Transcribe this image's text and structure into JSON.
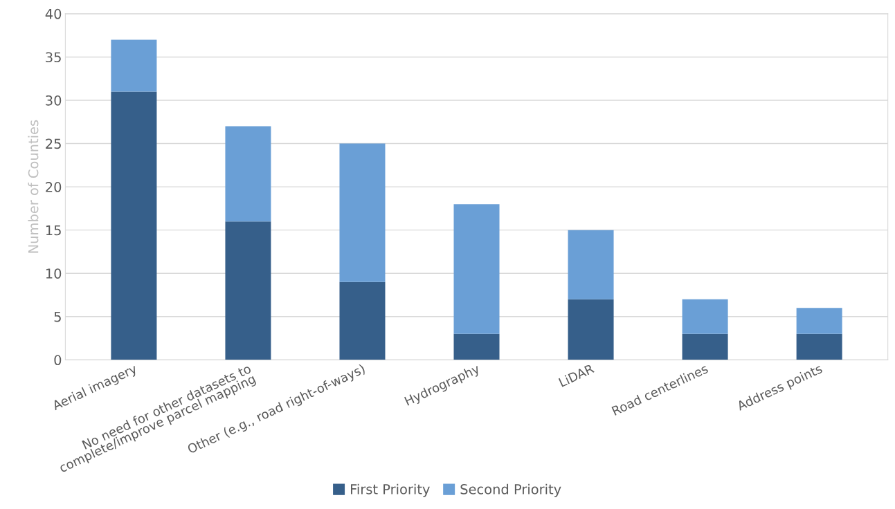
{
  "chart_data": {
    "type": "bar",
    "stacked": true,
    "ylabel": "Number of Counties",
    "categories": [
      "Aerial imagery",
      "No need for other datasets to\ncomplete/improve parcel mapping",
      "Other (e.g., road right-of-ways)",
      "Hydrography",
      "LiDAR",
      "Road centerlines",
      "Address points"
    ],
    "series": [
      {
        "name": "First Priority",
        "color": "#365f8a",
        "values": [
          31,
          16,
          9,
          3,
          7,
          3,
          3
        ]
      },
      {
        "name": "Second Priority",
        "color": "#6a9fd6",
        "values": [
          6,
          11,
          16,
          15,
          8,
          4,
          3
        ]
      }
    ],
    "ylim": [
      0,
      40
    ],
    "yticks": [
      0,
      5,
      10,
      15,
      20,
      25,
      30,
      35,
      40
    ],
    "grid": "y",
    "legend": "bottom"
  }
}
